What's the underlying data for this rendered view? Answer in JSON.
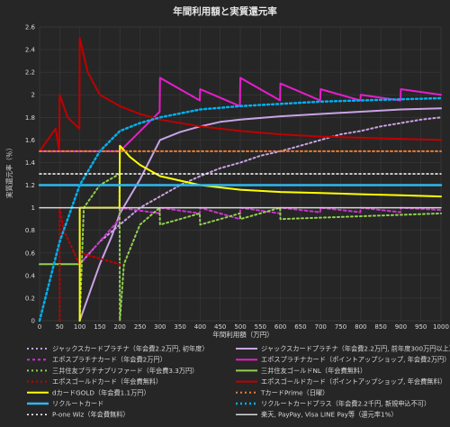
{
  "chart_data": {
    "type": "line",
    "title": "年間利用額と実質還元率",
    "xlabel": "年間利用額（万円）",
    "ylabel": "実質還元率（％）",
    "xlim": [
      0,
      1000
    ],
    "ylim": [
      0,
      2.6
    ],
    "grid": true,
    "x_ticks": [
      0,
      50,
      100,
      150,
      200,
      250,
      300,
      350,
      400,
      450,
      500,
      550,
      600,
      650,
      700,
      750,
      800,
      850,
      900,
      950,
      1000
    ],
    "y_ticks": [
      0,
      0.2,
      0.4,
      0.6,
      0.8,
      1,
      1.2,
      1.4,
      1.6,
      1.8,
      2,
      2.2,
      2.4,
      2.6
    ],
    "legend_position": "bottom",
    "series": [
      {
        "name": "ジャックスカードプラチナ（年会費2.2万円, 初年度）",
        "color": "#c9a3e6",
        "dash": "2,3",
        "width": 2,
        "points": [
          [
            100,
            0.5
          ],
          [
            150,
            0.7
          ],
          [
            200,
            0.85
          ],
          [
            250,
            1.0
          ],
          [
            300,
            1.1
          ],
          [
            350,
            1.2
          ],
          [
            400,
            1.28
          ],
          [
            450,
            1.35
          ],
          [
            500,
            1.4
          ],
          [
            550,
            1.46
          ],
          [
            600,
            1.5
          ],
          [
            650,
            1.55
          ],
          [
            700,
            1.6
          ],
          [
            750,
            1.65
          ],
          [
            800,
            1.68
          ],
          [
            850,
            1.72
          ],
          [
            900,
            1.75
          ],
          [
            950,
            1.78
          ],
          [
            1000,
            1.8
          ]
        ]
      },
      {
        "name": "ジャックスカードプラチナ（年会費2.2万円, 前年度300万円以上）",
        "color": "#c9a3e6",
        "dash": "",
        "width": 2,
        "points": [
          [
            100,
            0
          ],
          [
            120,
            0.2
          ],
          [
            150,
            0.5
          ],
          [
            180,
            0.75
          ],
          [
            200,
            0.95
          ],
          [
            250,
            1.25
          ],
          [
            300,
            1.6
          ],
          [
            350,
            1.67
          ],
          [
            400,
            1.72
          ],
          [
            450,
            1.76
          ],
          [
            500,
            1.78
          ],
          [
            600,
            1.81
          ],
          [
            700,
            1.83
          ],
          [
            800,
            1.85
          ],
          [
            900,
            1.87
          ],
          [
            1000,
            1.88
          ]
        ]
      },
      {
        "name": "エポスプラチナカード（年会費2万円）",
        "color": "#cc33cc",
        "dash": "3,3",
        "width": 2,
        "points": [
          [
            100,
            0.5
          ],
          [
            199,
            0.9
          ],
          [
            200,
            1.0
          ],
          [
            299,
            0.95
          ],
          [
            300,
            1.0
          ],
          [
            399,
            0.95
          ],
          [
            400,
            1.0
          ],
          [
            499,
            0.9
          ],
          [
            500,
            1.0
          ],
          [
            599,
            0.95
          ],
          [
            600,
            1.0
          ],
          [
            699,
            0.96
          ],
          [
            700,
            1.0
          ],
          [
            799,
            0.96
          ],
          [
            800,
            1.0
          ],
          [
            899,
            0.96
          ],
          [
            900,
            1.0
          ],
          [
            1000,
            0.98
          ]
        ]
      },
      {
        "name": "エポスプラチナカード（ポイントアップショップ, 年会費2万円）",
        "color": "#e61ecc",
        "dash": "",
        "width": 2,
        "points": [
          [
            0,
            1.5
          ],
          [
            199,
            1.5
          ],
          [
            200,
            1.5
          ],
          [
            299,
            1.85
          ],
          [
            300,
            2.15
          ],
          [
            399,
            1.95
          ],
          [
            400,
            2.05
          ],
          [
            499,
            1.9
          ],
          [
            500,
            2.15
          ],
          [
            599,
            1.95
          ],
          [
            600,
            2.1
          ],
          [
            699,
            1.95
          ],
          [
            700,
            2.05
          ],
          [
            799,
            1.95
          ],
          [
            800,
            2.0
          ],
          [
            899,
            1.95
          ],
          [
            900,
            2.05
          ],
          [
            1000,
            2.0
          ]
        ]
      },
      {
        "name": "三井住友プラチナプリファード（年会費3.3万円）",
        "color": "#92d050",
        "dash": "2,3",
        "width": 2,
        "points": [
          [
            100,
            0
          ],
          [
            110,
            1.0
          ],
          [
            150,
            1.2
          ],
          [
            199,
            1.3
          ],
          [
            200,
            0
          ],
          [
            210,
            0.5
          ],
          [
            250,
            0.85
          ],
          [
            299,
            1.0
          ],
          [
            300,
            0.85
          ],
          [
            350,
            0.9
          ],
          [
            399,
            0.95
          ],
          [
            400,
            0.85
          ],
          [
            450,
            0.9
          ],
          [
            499,
            0.95
          ],
          [
            500,
            0.9
          ],
          [
            599,
            1.0
          ],
          [
            600,
            0.9
          ],
          [
            1000,
            0.95
          ]
        ]
      },
      {
        "name": "三井住友ゴールドNL（年会費無料）",
        "color": "#92d050",
        "dash": "",
        "width": 2,
        "points": [
          [
            0,
            0.5
          ],
          [
            100,
            0.5
          ]
        ]
      },
      {
        "name": "エポスゴールドカード（年会費無料）",
        "color": "#c00000",
        "dash": "2,3",
        "width": 2,
        "points": [
          [
            50,
            0
          ],
          [
            50,
            1.0
          ],
          [
            60,
            0.8
          ],
          [
            80,
            0.65
          ],
          [
            99,
            0.5
          ],
          [
            100,
            0.6
          ],
          [
            150,
            0.55
          ],
          [
            200,
            0.5
          ]
        ]
      },
      {
        "name": "エポスゴールドカード（ポイントアップショップ, 年会費無料）",
        "color": "#c00000",
        "dash": "",
        "width": 2,
        "points": [
          [
            0,
            1.5
          ],
          [
            40,
            1.7
          ],
          [
            49,
            1.5
          ],
          [
            50,
            2.0
          ],
          [
            70,
            1.8
          ],
          [
            99,
            1.7
          ],
          [
            100,
            2.5
          ],
          [
            120,
            2.2
          ],
          [
            150,
            2.0
          ],
          [
            200,
            1.9
          ],
          [
            250,
            1.83
          ],
          [
            300,
            1.78
          ],
          [
            400,
            1.72
          ],
          [
            500,
            1.68
          ],
          [
            600,
            1.65
          ],
          [
            700,
            1.63
          ],
          [
            800,
            1.62
          ],
          [
            900,
            1.61
          ],
          [
            1000,
            1.6
          ]
        ]
      },
      {
        "name": "dカードGOLD（年会費1.1万円）",
        "color": "#ffff00",
        "dash": "",
        "width": 2,
        "points": [
          [
            100,
            0
          ],
          [
            100,
            1.0
          ],
          [
            199,
            1.0
          ],
          [
            200,
            1.55
          ],
          [
            225,
            1.45
          ],
          [
            250,
            1.38
          ],
          [
            300,
            1.28
          ],
          [
            350,
            1.24
          ],
          [
            400,
            1.2
          ],
          [
            500,
            1.16
          ],
          [
            600,
            1.14
          ],
          [
            700,
            1.13
          ],
          [
            800,
            1.12
          ],
          [
            900,
            1.11
          ],
          [
            1000,
            1.1
          ]
        ]
      },
      {
        "name": "TカードPrime（日曜）",
        "color": "#ed7d31",
        "dash": "2,3",
        "width": 2,
        "points": [
          [
            0,
            1.5
          ],
          [
            1000,
            1.5
          ]
        ]
      },
      {
        "name": "リクルートカード",
        "color": "#2eb8f0",
        "dash": "",
        "width": 2.5,
        "points": [
          [
            0,
            1.2
          ],
          [
            1000,
            1.2
          ]
        ]
      },
      {
        "name": "リクルートカードプラス（年会費2.2千円, 新規申込不可）",
        "color": "#00b0f0",
        "dash": "2,3",
        "width": 2.5,
        "points": [
          [
            0,
            0
          ],
          [
            50,
            0.7
          ],
          [
            100,
            1.2
          ],
          [
            150,
            1.5
          ],
          [
            200,
            1.68
          ],
          [
            250,
            1.75
          ],
          [
            300,
            1.8
          ],
          [
            400,
            1.87
          ],
          [
            500,
            1.9
          ],
          [
            600,
            1.92
          ],
          [
            700,
            1.94
          ],
          [
            800,
            1.95
          ],
          [
            900,
            1.96
          ],
          [
            1000,
            1.97
          ]
        ]
      },
      {
        "name": "P-one Wiz（年会費無料）",
        "color": "#ffffff",
        "dash": "2,3",
        "width": 1.5,
        "points": [
          [
            0,
            1.3
          ],
          [
            1000,
            1.3
          ]
        ]
      },
      {
        "name": "楽天, PayPay, Visa LINE Pay等（還元率1%）",
        "color": "#d9d9d9",
        "dash": "",
        "width": 1.5,
        "points": [
          [
            0,
            1.0
          ],
          [
            1000,
            1.0
          ]
        ]
      }
    ]
  }
}
